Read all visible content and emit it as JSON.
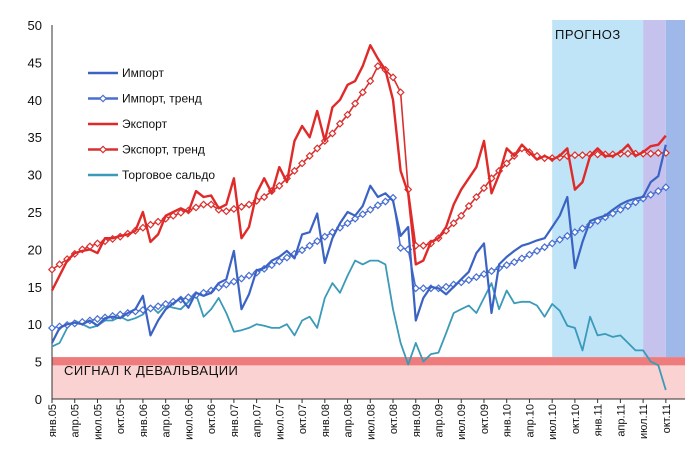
{
  "chart_data": {
    "type": "line",
    "title": "",
    "xlabel": "",
    "ylabel": "",
    "ylim": [
      0,
      50
    ],
    "yticks": [
      0,
      5,
      10,
      15,
      20,
      25,
      30,
      35,
      40,
      45,
      50
    ],
    "start_month": "2005-01",
    "n_months": 84,
    "xtick_labels": [
      "янв.05",
      "апр.05",
      "июл.05",
      "окт.05",
      "янв.06",
      "апр.06",
      "июл.06",
      "окт.06",
      "янв.07",
      "апр.07",
      "июл.07",
      "окт.07",
      "янв.08",
      "апр.08",
      "июл.08",
      "окт.08",
      "янв.09",
      "апр.09",
      "июл.09",
      "окт.09",
      "янв.10",
      "апр.10",
      "июл.10",
      "окт.10",
      "янв.11",
      "апр.11",
      "июл.11",
      "окт.11"
    ],
    "forecast_label": "ПРОГНОЗ",
    "signal_label": "СИГНАЛ  К ДЕВАЛЬВАЦИИ",
    "signal_band": [
      4.5,
      5.6
    ],
    "signal_zone": [
      0,
      5.6
    ],
    "colors": {
      "import": "#3a63c4",
      "import_trend": "#4a6fd0",
      "export": "#e02a2a",
      "export_trend": "#d9312f",
      "balance": "#3a9ab8",
      "forecast1": "#bfe4f7",
      "forecast2": "#c5c2ee",
      "forecast3": "#9fb8ea",
      "signal_band": "#ef7c7c",
      "signal_zone": "#fbd2d2"
    },
    "series": [
      {
        "name": "Импорт",
        "key": "import",
        "values": [
          7.5,
          9.5,
          10.0,
          10.2,
          10.0,
          10.5,
          9.8,
          10.8,
          11.0,
          10.8,
          11.5,
          12.0,
          13.8,
          8.5,
          10.5,
          12.0,
          12.8,
          13.5,
          12.2,
          14.2,
          13.8,
          14.2,
          15.5,
          16.0,
          19.8,
          12.0,
          14.0,
          17.2,
          17.5,
          18.5,
          19.0,
          19.8,
          18.8,
          22.0,
          22.3,
          24.8,
          18.2,
          21.5,
          23.5,
          25.0,
          24.5,
          25.8,
          28.5,
          27.0,
          27.5,
          26.5,
          21.8,
          23.0,
          10.5,
          13.5,
          15.0,
          14.8,
          14.0,
          15.0,
          16.0,
          17.0,
          19.5,
          20.8,
          11.5,
          18.0,
          19.0,
          19.8,
          20.5,
          20.8,
          21.2,
          21.5,
          23.0,
          24.5,
          27.0,
          17.5,
          21.0,
          23.8,
          24.2,
          24.5,
          25.3,
          26.0,
          26.5,
          26.8,
          27.0,
          29.0,
          29.8,
          34.0
        ]
      },
      {
        "name": "Импорт, тренд",
        "key": "import_trend",
        "values": [
          9.5,
          9.7,
          9.9,
          10.1,
          10.3,
          10.5,
          10.7,
          10.9,
          11.1,
          11.3,
          11.5,
          11.7,
          11.9,
          12.1,
          12.4,
          12.7,
          13.0,
          13.3,
          13.6,
          13.9,
          14.2,
          14.5,
          14.9,
          15.3,
          15.7,
          16.1,
          16.5,
          16.9,
          17.4,
          17.9,
          18.4,
          18.9,
          19.4,
          19.9,
          20.5,
          21.1,
          21.7,
          22.3,
          22.9,
          23.5,
          24.1,
          24.7,
          25.3,
          25.9,
          26.4,
          26.9,
          20.2,
          20.0,
          14.8,
          14.8,
          14.8,
          14.8,
          15.0,
          15.3,
          15.6,
          15.9,
          16.3,
          16.7,
          17.1,
          17.5,
          17.9,
          18.3,
          18.8,
          19.3,
          19.8,
          20.3,
          20.8,
          21.3,
          21.8,
          22.3,
          22.8,
          23.3,
          23.8,
          24.3,
          24.8,
          25.3,
          25.8,
          26.3,
          26.8,
          27.3,
          27.8,
          28.3
        ]
      },
      {
        "name": "Экспорт",
        "key": "export",
        "values": [
          14.5,
          16.5,
          18.5,
          19.5,
          19.8,
          20.0,
          19.5,
          21.5,
          21.5,
          21.8,
          22.0,
          22.5,
          25.0,
          21.0,
          22.0,
          24.5,
          25.0,
          25.5,
          25.0,
          27.8,
          27.0,
          27.2,
          25.5,
          26.0,
          29.5,
          21.5,
          23.0,
          27.5,
          29.5,
          27.5,
          31.0,
          29.0,
          34.5,
          36.5,
          35.0,
          38.5,
          34.5,
          39.0,
          40.0,
          42.0,
          42.5,
          44.5,
          47.3,
          45.5,
          44.0,
          40.0,
          30.5,
          27.5,
          18.0,
          18.5,
          21.0,
          21.5,
          23.0,
          26.0,
          28.0,
          29.5,
          31.0,
          34.5,
          27.5,
          30.0,
          33.5,
          32.5,
          34.0,
          33.0,
          32.0,
          32.5,
          32.0,
          32.5,
          33.5,
          28.0,
          29.0,
          32.5,
          33.5,
          32.5,
          32.5,
          33.0,
          34.0,
          32.5,
          33.0,
          33.8,
          34.0,
          35.2
        ]
      },
      {
        "name": "Экспорт, тренд",
        "key": "export_trend",
        "values": [
          17.3,
          18.0,
          18.7,
          19.4,
          20.0,
          20.4,
          20.8,
          21.1,
          21.4,
          21.7,
          22.1,
          22.5,
          22.9,
          23.3,
          23.7,
          24.1,
          24.5,
          24.9,
          25.2,
          25.6,
          26.0,
          26.0,
          25.3,
          25.1,
          25.4,
          25.7,
          26.0,
          26.5,
          27.0,
          27.8,
          28.5,
          29.5,
          30.5,
          31.5,
          32.5,
          33.5,
          34.5,
          35.5,
          36.8,
          38.0,
          39.5,
          41.0,
          42.5,
          44.5,
          44.0,
          43.0,
          41.0,
          28.0,
          20.5,
          20.5,
          20.8,
          21.5,
          22.5,
          23.5,
          24.5,
          25.8,
          27.0,
          28.2,
          29.5,
          30.5,
          31.5,
          32.5,
          33.5,
          33.0,
          32.5,
          32.2,
          32.2,
          32.3,
          32.5,
          32.6,
          32.6,
          32.7,
          32.7,
          32.7,
          32.7,
          32.8,
          32.8,
          32.8,
          32.8,
          32.8,
          32.9,
          32.9
        ]
      },
      {
        "name": "Торговое сальдо",
        "key": "balance",
        "values": [
          7.0,
          7.5,
          9.5,
          10.5,
          10.0,
          9.5,
          9.8,
          10.5,
          10.5,
          11.0,
          10.5,
          10.8,
          11.3,
          12.5,
          11.5,
          12.5,
          12.2,
          12.0,
          13.0,
          14.0,
          11.0,
          12.0,
          13.5,
          11.5,
          9.0,
          9.2,
          9.5,
          10.0,
          9.8,
          9.5,
          9.5,
          10.0,
          8.5,
          10.5,
          11.0,
          9.5,
          13.5,
          15.5,
          14.2,
          16.5,
          18.5,
          18.0,
          18.5,
          18.5,
          18.0,
          12.0,
          7.5,
          4.6,
          7.5,
          5.0,
          6.0,
          6.2,
          8.8,
          11.5,
          12.0,
          12.5,
          11.5,
          13.5,
          15.5,
          12.0,
          14.5,
          12.8,
          13.0,
          13.0,
          12.5,
          11.0,
          12.7,
          11.8,
          9.8,
          9.5,
          6.5,
          11.0,
          8.5,
          8.7,
          8.3,
          8.5,
          7.5,
          6.5,
          6.5,
          5.0,
          4.5,
          1.2
        ]
      }
    ],
    "legend": [
      {
        "label": "Импорт",
        "key": "import",
        "markers": false
      },
      {
        "label": "Импорт, тренд",
        "key": "import_trend",
        "markers": true
      },
      {
        "label": "Экспорт",
        "key": "export",
        "markers": false
      },
      {
        "label": "Экспорт, тренд",
        "key": "export_trend",
        "markers": true
      },
      {
        "label": "Торговое сальдо",
        "key": "balance",
        "markers": false
      }
    ]
  }
}
